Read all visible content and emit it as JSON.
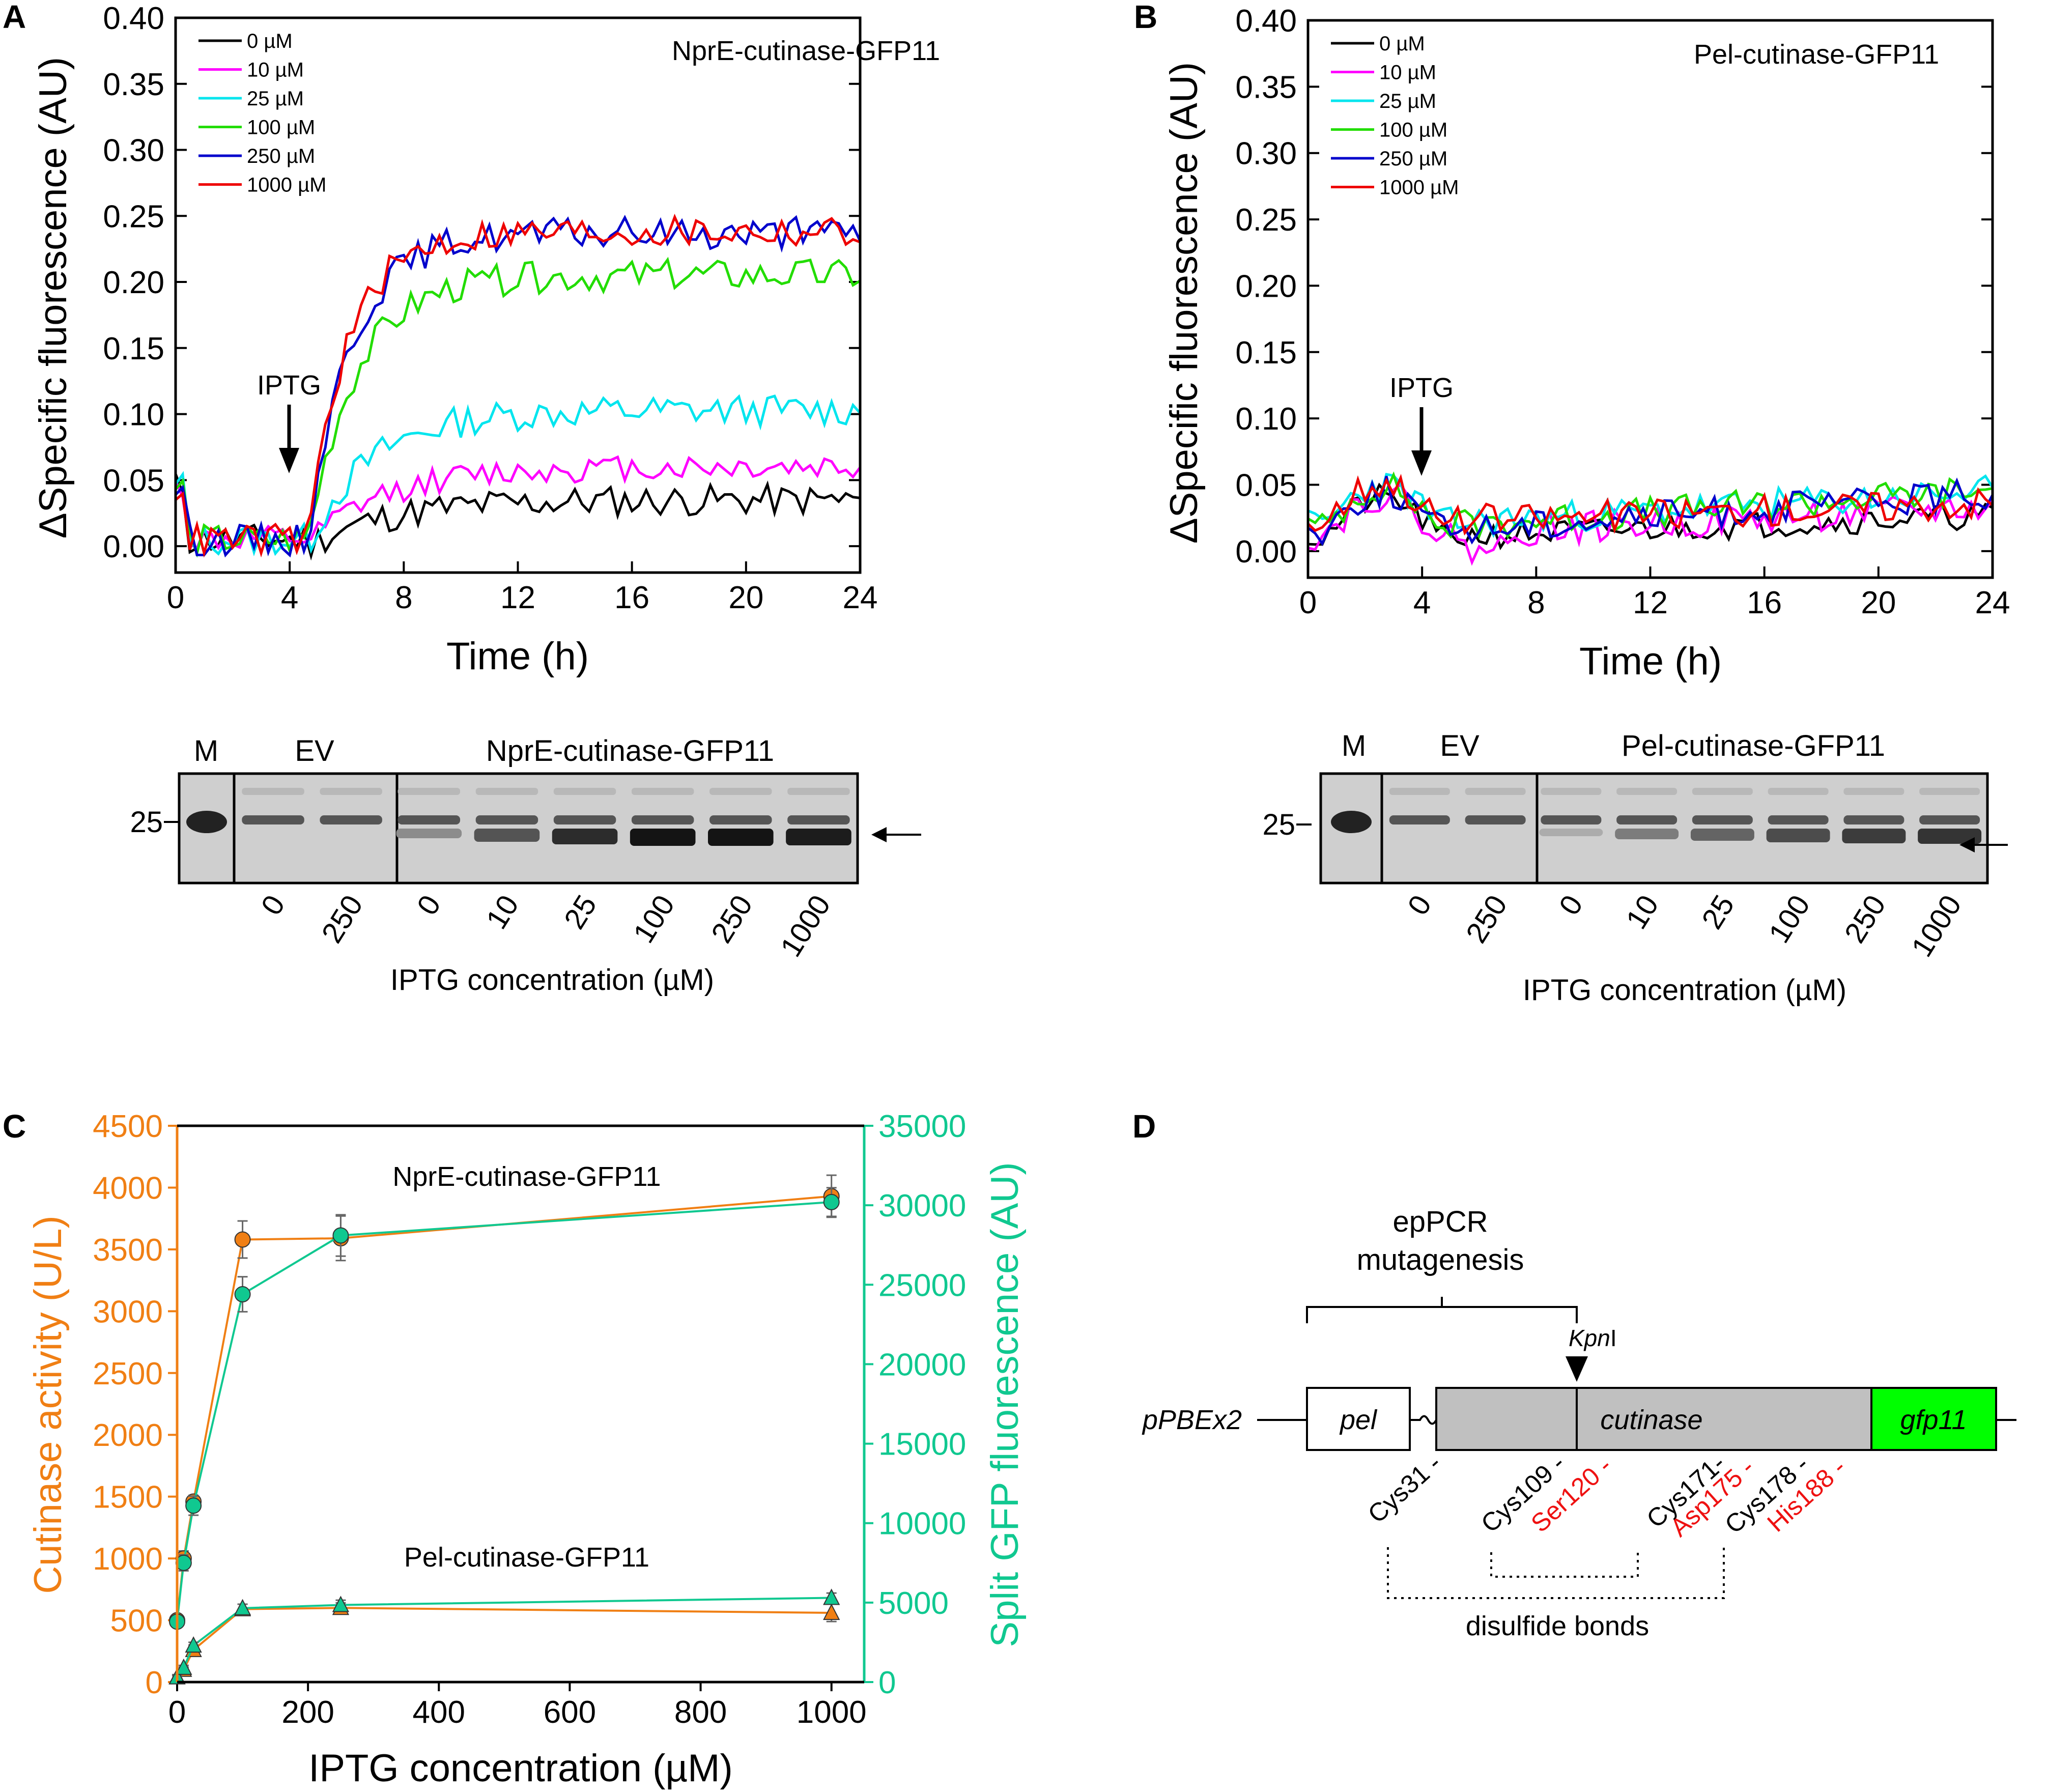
{
  "colors": {
    "c0": "#000000",
    "c10": "#ff00ff",
    "c25": "#00e5ee",
    "c100": "#22dd00",
    "c250": "#0000cc",
    "c1000": "#ee0000",
    "orange": "#f07f14",
    "teal": "#10c890",
    "gray": "#c0c0c0",
    "green": "#00ff00",
    "red": "#ee1111"
  },
  "panels": {
    "A": {
      "label": "A",
      "gel_markers": {
        "m": "M",
        "ev": "EV",
        "construct": "NprE-cutinase-GFP11",
        "size": "25"
      }
    },
    "B": {
      "label": "B",
      "gel_markers": {
        "m": "M",
        "ev": "EV",
        "construct": "Pel-cutinase-GFP11",
        "size": "25"
      }
    },
    "C": {
      "label": "C"
    },
    "D": {
      "label": "D"
    }
  },
  "gel_lanes": [
    "0",
    "250",
    "0",
    "10",
    "25",
    "100",
    "250",
    "1000"
  ],
  "gel_xlabel": "IPTG concentration (µM)",
  "chart_data": [
    {
      "id": "A",
      "type": "line",
      "title": "NprE-cutinase-GFP11",
      "xlabel": "Time (h)",
      "ylabel": "ΔSpecific fluorescence (AU)",
      "xlim": [
        0,
        24
      ],
      "ylim": [
        -0.02,
        0.4
      ],
      "xticks": [
        "0",
        "4",
        "8",
        "12",
        "16",
        "20",
        "24"
      ],
      "yticks": [
        "0.00",
        "0.05",
        "0.10",
        "0.15",
        "0.20",
        "0.25",
        "0.30",
        "0.35",
        "0.40"
      ],
      "annotation": {
        "text": "IPTG",
        "x": 4
      },
      "series": [
        {
          "name": "0 µM",
          "color": "c0",
          "plateau": 0.035,
          "onset": 4.6,
          "tau": 2.8,
          "noise": 0.012,
          "seed": 11
        },
        {
          "name": "10 µM",
          "color": "c10",
          "plateau": 0.06,
          "onset": 4.6,
          "tau": 2.6,
          "noise": 0.01,
          "seed": 12
        },
        {
          "name": "25 µM",
          "color": "c25",
          "plateau": 0.103,
          "onset": 4.6,
          "tau": 2.2,
          "noise": 0.012,
          "seed": 13
        },
        {
          "name": "100 µM",
          "color": "c100",
          "plateau": 0.205,
          "onset": 4.6,
          "tau": 1.7,
          "noise": 0.012,
          "seed": 14
        },
        {
          "name": "250 µM",
          "color": "c250",
          "plateau": 0.237,
          "onset": 4.6,
          "tau": 1.5,
          "noise": 0.012,
          "seed": 15
        },
        {
          "name": "1000 µM",
          "color": "c1000",
          "plateau": 0.238,
          "onset": 4.6,
          "tau": 1.4,
          "noise": 0.012,
          "seed": 16
        }
      ]
    },
    {
      "id": "B",
      "type": "line",
      "title": "Pel-cutinase-GFP11",
      "xlabel": "Time (h)",
      "ylabel": "ΔSpecific fluorescence (AU)",
      "xlim": [
        0,
        24
      ],
      "ylim": [
        -0.02,
        0.4
      ],
      "xticks": [
        "0",
        "4",
        "8",
        "12",
        "16",
        "20",
        "24"
      ],
      "yticks": [
        "0.00",
        "0.05",
        "0.10",
        "0.15",
        "0.20",
        "0.25",
        "0.30",
        "0.35",
        "0.40"
      ],
      "annotation": {
        "text": "IPTG",
        "x": 4
      },
      "series": [
        {
          "name": "0 µM",
          "color": "c0",
          "start": 0.01,
          "end": 0.027,
          "noise": 0.01,
          "seed": 21
        },
        {
          "name": "10 µM",
          "color": "c10",
          "start": 0.012,
          "end": 0.033,
          "noise": 0.012,
          "seed": 22
        },
        {
          "name": "25 µM",
          "color": "c25",
          "start": 0.02,
          "end": 0.045,
          "noise": 0.012,
          "seed": 23
        },
        {
          "name": "100 µM",
          "color": "c100",
          "start": 0.018,
          "end": 0.046,
          "noise": 0.012,
          "seed": 24
        },
        {
          "name": "250 µM",
          "color": "c250",
          "start": 0.015,
          "end": 0.043,
          "noise": 0.012,
          "seed": 25
        },
        {
          "name": "1000 µM",
          "color": "c1000",
          "start": 0.022,
          "end": 0.037,
          "noise": 0.012,
          "seed": 26
        }
      ]
    },
    {
      "id": "C",
      "type": "line",
      "xlabel": "IPTG concentration (µM)",
      "ylabel_left": "Cutinase activity (U/L)",
      "ylabel_right": "Split GFP fluorescence (AU)",
      "xlim": [
        0,
        1050
      ],
      "ylim_left": [
        0,
        4500
      ],
      "ylim_right": [
        0,
        35000
      ],
      "xticks": [
        "0",
        "200",
        "400",
        "600",
        "800",
        "1000"
      ],
      "yticks_left": [
        "0",
        "500",
        "1000",
        "1500",
        "2000",
        "2500",
        "3000",
        "3500",
        "4000",
        "4500"
      ],
      "yticks_right": [
        "0",
        "5000",
        "10000",
        "15000",
        "20000",
        "25000",
        "30000",
        "35000"
      ],
      "labels": {
        "npre": "NprE-cutinase-GFP11",
        "pel": "Pel-cutinase-GFP11"
      },
      "x": [
        0,
        10,
        25,
        100,
        250,
        1000
      ],
      "series": [
        {
          "name": "NprE activity",
          "axis": "left",
          "color": "orange",
          "marker": "circle",
          "values": [
            500,
            1000,
            1460,
            3580,
            3590,
            3930
          ],
          "err": [
            40,
            60,
            50,
            150,
            180,
            170
          ]
        },
        {
          "name": "NprE split GFP",
          "axis": "right",
          "color": "teal",
          "marker": "circle",
          "values": [
            3800,
            7500,
            11100,
            24400,
            28100,
            30200
          ],
          "err": [
            300,
            500,
            600,
            1100,
            1300,
            900
          ]
        },
        {
          "name": "Pel activity",
          "axis": "left",
          "color": "orange",
          "marker": "triangle",
          "values": [
            40,
            100,
            260,
            590,
            600,
            560
          ],
          "err": [
            20,
            20,
            40,
            40,
            40,
            70
          ]
        },
        {
          "name": "Pel split GFP",
          "axis": "right",
          "color": "teal",
          "marker": "triangle",
          "values": [
            300,
            900,
            2300,
            4650,
            4850,
            5300
          ],
          "err": [
            100,
            150,
            200,
            250,
            300,
            300
          ]
        }
      ]
    }
  ],
  "diagram": {
    "title_line1": "epPCR",
    "title_line2": "mutagenesis",
    "kpni_italic": "Kpn",
    "kpni_roman": "I",
    "plasmid": "pPBEx2",
    "blocks": {
      "pel": "pel",
      "cutinase": "cutinase",
      "gfp11": "gfp11"
    },
    "residues": [
      {
        "text": "Cys31 -",
        "color": "black"
      },
      {
        "text": "Cys109 -",
        "color": "black"
      },
      {
        "text": "Ser120 -",
        "color": "red"
      },
      {
        "text": "Cys171-",
        "color": "black"
      },
      {
        "text": "Asp175 -",
        "color": "red"
      },
      {
        "text": "Cys178 -",
        "color": "black"
      },
      {
        "text": "His188 -",
        "color": "red"
      }
    ],
    "bonds_label": "disulfide bonds"
  }
}
